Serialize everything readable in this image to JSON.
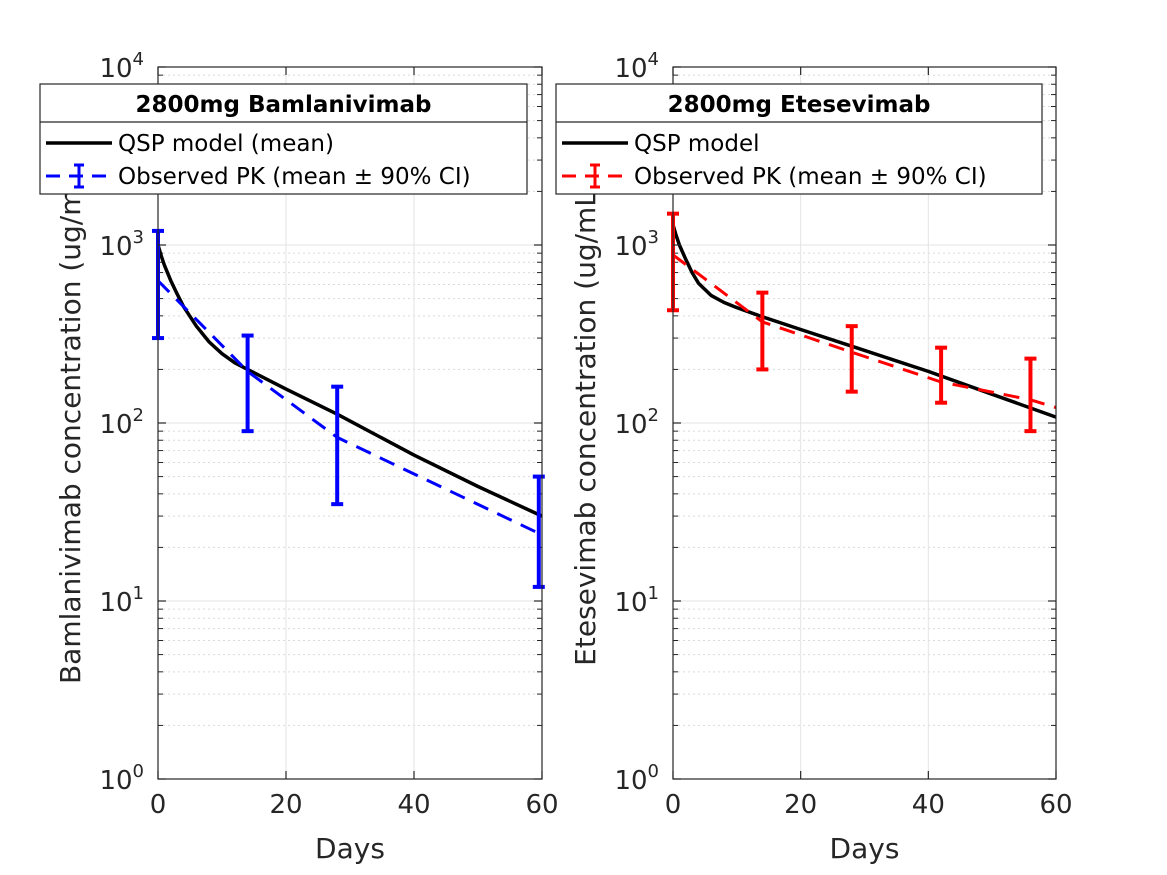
{
  "chart_data": [
    {
      "type": "line",
      "panel": "left",
      "title": "2800mg Bamlanivimab",
      "xlabel": "Days",
      "ylabel": "Bamlanivimab concentration (ug/mL)",
      "xlim": [
        0,
        60
      ],
      "ylim": [
        1,
        10000
      ],
      "yscale": "log",
      "grid": true,
      "legend_placement": "top",
      "x_ticks": [
        "0",
        "20",
        "40",
        "60"
      ],
      "y_ticks": [
        {
          "base": "10",
          "exp": "0"
        },
        {
          "base": "10",
          "exp": "1"
        },
        {
          "base": "10",
          "exp": "2"
        },
        {
          "base": "10",
          "exp": "3"
        },
        {
          "base": "10",
          "exp": "4"
        }
      ],
      "series": [
        {
          "name": "QSP model (mean)",
          "style": "solid",
          "color": "#000000",
          "x": [
            0,
            0.5,
            1,
            2,
            3,
            4,
            6,
            8,
            10,
            12,
            14,
            20,
            28,
            40,
            50,
            60
          ],
          "y": [
            1000,
            870,
            770,
            630,
            530,
            450,
            350,
            285,
            245,
            218,
            200,
            155,
            112,
            66,
            44,
            30
          ]
        },
        {
          "name": "Observed PK (mean ± 90% CI)",
          "style": "dashed",
          "color": "#0000ff",
          "x": [
            0,
            14,
            28,
            59.5
          ],
          "y": [
            630,
            195,
            83,
            24
          ],
          "error_lower": [
            300,
            90,
            35,
            12
          ],
          "error_upper": [
            1200,
            310,
            160,
            50
          ]
        }
      ]
    },
    {
      "type": "line",
      "panel": "right",
      "title": "2800mg Etesevimab",
      "xlabel": "Days",
      "ylabel": "Etesevimab concentration (ug/mL)",
      "xlim": [
        0,
        60
      ],
      "ylim": [
        1,
        10000
      ],
      "yscale": "log",
      "grid": true,
      "legend_placement": "top",
      "x_ticks": [
        "0",
        "20",
        "40",
        "60"
      ],
      "y_ticks": [
        {
          "base": "10",
          "exp": "0"
        },
        {
          "base": "10",
          "exp": "1"
        },
        {
          "base": "10",
          "exp": "2"
        },
        {
          "base": "10",
          "exp": "3"
        },
        {
          "base": "10",
          "exp": "4"
        }
      ],
      "series": [
        {
          "name": "QSP model",
          "style": "solid",
          "color": "#000000",
          "x": [
            0,
            0.5,
            1,
            2,
            3,
            4,
            6,
            8,
            10,
            14,
            20,
            28,
            40,
            50,
            60
          ],
          "y": [
            1300,
            1130,
            1000,
            830,
            700,
            610,
            520,
            475,
            445,
            395,
            335,
            270,
            195,
            145,
            108
          ]
        },
        {
          "name": "Observed PK (mean ± 90% CI)",
          "style": "dashed",
          "color": "#ff0000",
          "x": [
            0,
            14,
            28,
            42,
            56,
            60
          ],
          "y": [
            880,
            370,
            250,
            170,
            135,
            122
          ],
          "error_x": [
            0,
            14,
            28,
            42,
            56
          ],
          "error_lower": [
            430,
            200,
            150,
            130,
            90
          ],
          "error_upper": [
            1500,
            540,
            350,
            265,
            230
          ]
        }
      ]
    }
  ]
}
